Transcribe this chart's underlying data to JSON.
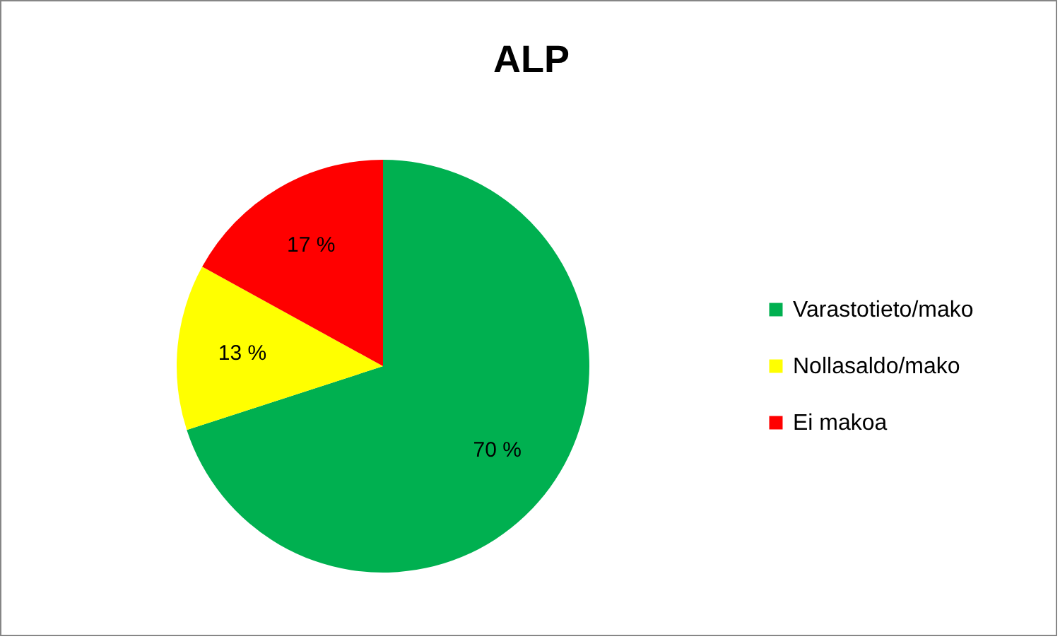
{
  "chart_data": {
    "type": "pie",
    "title": "ALP",
    "categories": [
      "Varastotieto/mako",
      "Nollasaldo/mako",
      "Ei makoa"
    ],
    "values": [
      70,
      13,
      17
    ],
    "colors": [
      "#00b050",
      "#ffff00",
      "#ff0000"
    ],
    "value_labels": [
      "70 %",
      "13 %",
      "17 %"
    ],
    "legend": "right"
  }
}
